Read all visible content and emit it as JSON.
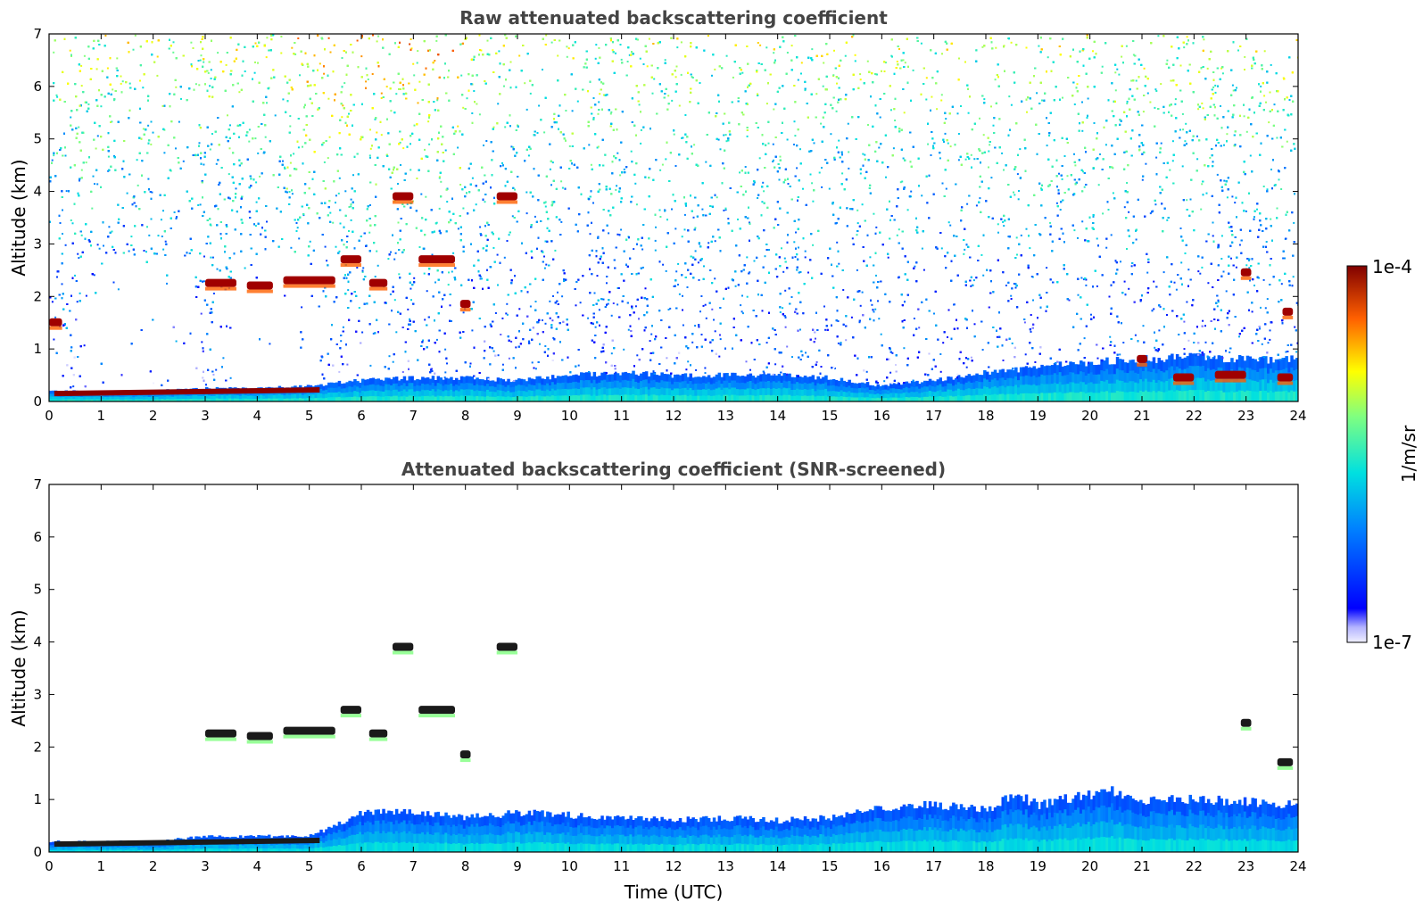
{
  "chart_data": [
    {
      "type": "heatmap",
      "title": "Raw attenuated backscattering coefficient",
      "xlabel": "",
      "ylabel": "Altitude (km)",
      "xlim": [
        0,
        24
      ],
      "ylim": [
        0,
        7
      ],
      "xticks": [
        "0",
        "1",
        "2",
        "3",
        "4",
        "5",
        "6",
        "7",
        "8",
        "9",
        "10",
        "11",
        "12",
        "13",
        "14",
        "15",
        "16",
        "17",
        "18",
        "19",
        "20",
        "21",
        "22",
        "23",
        "24"
      ],
      "yticks": [
        "0",
        "1",
        "2",
        "3",
        "4",
        "5",
        "6",
        "7"
      ],
      "screened": false,
      "aerosol_top_km": {
        "time": [
          0,
          1,
          2,
          3,
          4,
          5,
          6,
          7,
          8,
          9,
          10,
          11,
          12,
          13,
          14,
          15,
          16,
          17,
          18,
          19,
          20,
          21,
          22,
          23,
          24
        ],
        "top": [
          0.2,
          0.2,
          0.2,
          0.25,
          0.25,
          0.3,
          0.4,
          0.45,
          0.45,
          0.4,
          0.5,
          0.55,
          0.5,
          0.5,
          0.5,
          0.45,
          0.3,
          0.4,
          0.55,
          0.65,
          0.75,
          0.8,
          0.85,
          0.8,
          0.8
        ]
      },
      "cloud_features": [
        {
          "t0": 0.0,
          "t1": 0.25,
          "alt": 1.5
        },
        {
          "t0": 3.0,
          "t1": 3.6,
          "alt": 2.25
        },
        {
          "t0": 3.8,
          "t1": 4.3,
          "alt": 2.2
        },
        {
          "t0": 4.5,
          "t1": 5.5,
          "alt": 2.3
        },
        {
          "t0": 5.6,
          "t1": 6.0,
          "alt": 2.7
        },
        {
          "t0": 6.15,
          "t1": 6.5,
          "alt": 2.25
        },
        {
          "t0": 6.6,
          "t1": 7.0,
          "alt": 3.9
        },
        {
          "t0": 7.1,
          "t1": 7.8,
          "alt": 2.7
        },
        {
          "t0": 7.9,
          "t1": 8.1,
          "alt": 1.85
        },
        {
          "t0": 8.6,
          "t1": 9.0,
          "alt": 3.9
        },
        {
          "t0": 20.9,
          "t1": 21.1,
          "alt": 0.8
        },
        {
          "t0": 21.6,
          "t1": 22.0,
          "alt": 0.45
        },
        {
          "t0": 22.4,
          "t1": 23.0,
          "alt": 0.5
        },
        {
          "t0": 23.6,
          "t1": 23.9,
          "alt": 0.45
        },
        {
          "t0": 23.7,
          "t1": 23.9,
          "alt": 1.7
        },
        {
          "t0": 22.9,
          "t1": 23.1,
          "alt": 2.45
        }
      ]
    },
    {
      "type": "heatmap",
      "title": "Attenuated backscattering coefficient (SNR-screened)",
      "xlabel": "Time (UTC)",
      "ylabel": "Altitude (km)",
      "xlim": [
        0,
        24
      ],
      "ylim": [
        0,
        7
      ],
      "xticks": [
        "0",
        "1",
        "2",
        "3",
        "4",
        "5",
        "6",
        "7",
        "8",
        "9",
        "10",
        "11",
        "12",
        "13",
        "14",
        "15",
        "16",
        "17",
        "18",
        "19",
        "20",
        "21",
        "22",
        "23",
        "24"
      ],
      "yticks": [
        "0",
        "1",
        "2",
        "3",
        "4",
        "5",
        "6",
        "7"
      ],
      "screened": true,
      "aerosol_top_km": {
        "time": [
          0,
          1,
          2,
          3,
          4,
          5,
          5.5,
          6,
          7,
          8,
          9,
          10,
          11,
          12,
          13,
          14,
          15,
          16,
          17,
          18,
          18.6,
          19,
          20,
          20.5,
          21,
          22,
          23,
          24
        ],
        "top": [
          0.2,
          0.2,
          0.2,
          0.3,
          0.3,
          0.3,
          0.5,
          0.75,
          0.75,
          0.65,
          0.75,
          0.7,
          0.65,
          0.6,
          0.65,
          0.6,
          0.65,
          0.85,
          0.9,
          0.8,
          1.1,
          0.9,
          1.1,
          1.15,
          1.0,
          1.0,
          0.95,
          0.9
        ]
      },
      "cloud_features": [
        {
          "t0": 3.0,
          "t1": 3.6,
          "alt": 2.25
        },
        {
          "t0": 3.8,
          "t1": 4.3,
          "alt": 2.2
        },
        {
          "t0": 4.5,
          "t1": 5.5,
          "alt": 2.3
        },
        {
          "t0": 5.6,
          "t1": 6.0,
          "alt": 2.7
        },
        {
          "t0": 6.15,
          "t1": 6.5,
          "alt": 2.25
        },
        {
          "t0": 6.6,
          "t1": 7.0,
          "alt": 3.9
        },
        {
          "t0": 7.1,
          "t1": 7.8,
          "alt": 2.7
        },
        {
          "t0": 7.9,
          "t1": 8.1,
          "alt": 1.85
        },
        {
          "t0": 8.6,
          "t1": 9.0,
          "alt": 3.9
        },
        {
          "t0": 22.9,
          "t1": 23.1,
          "alt": 2.45
        },
        {
          "t0": 23.6,
          "t1": 23.9,
          "alt": 1.7
        }
      ]
    }
  ],
  "colorbar": {
    "label": "1/m/sr",
    "max_label": "1e-4",
    "min_label": "1e-7",
    "colormap": "jet",
    "scale": "log"
  }
}
